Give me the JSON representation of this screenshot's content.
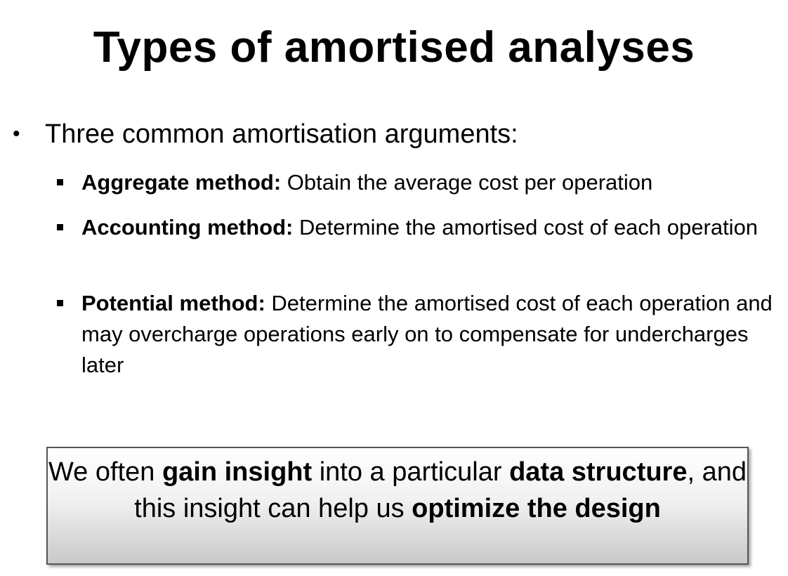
{
  "slide": {
    "title": "Types of amortised analyses",
    "main_bullet": {
      "symbol": "•",
      "text": "Three common amortisation arguments:"
    },
    "sub_bullets": [
      {
        "term": "Aggregate method:",
        "description": " Obtain the average cost per operation"
      },
      {
        "term": "Accounting method:",
        "description": " Determine the amortised cost of each operation"
      },
      {
        "term": "Potential method:",
        "description": " Determine the amortised cost of each operation and may overcharge operations early on to compensate for undercharges later"
      }
    ],
    "callout": {
      "part1": "We often ",
      "bold1": "gain insight",
      "part2": " into a particular ",
      "bold2": "data structure",
      "part3": ", and this insight can help us ",
      "bold3": "optimize the design"
    }
  }
}
